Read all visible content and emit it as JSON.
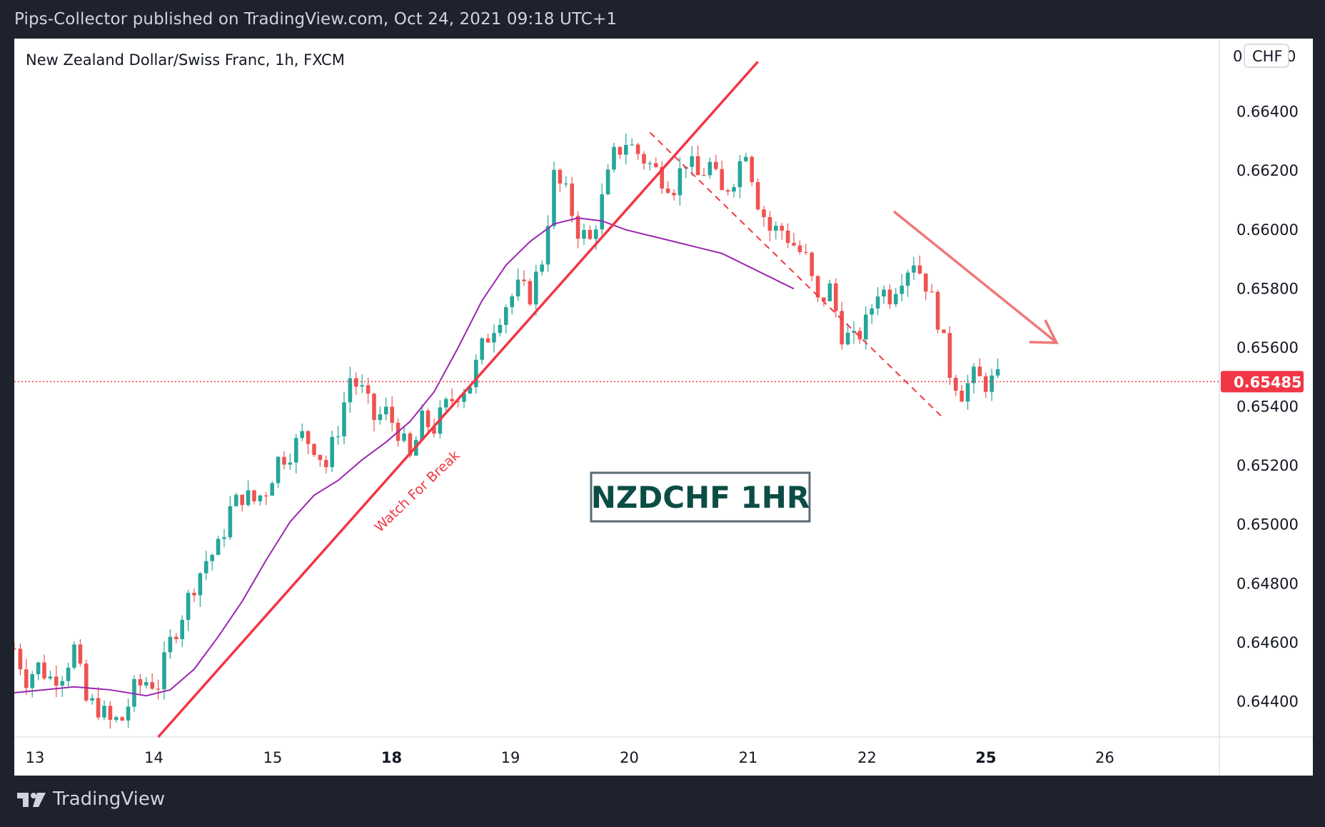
{
  "header": {
    "publisher_line": "Pips-Collector published on TradingView.com, Oct 24, 2021 09:18 UTC+1"
  },
  "footer": {
    "brand": "TradingView",
    "logo_icon": "tradingview-logo-icon"
  },
  "colors": {
    "up_candle": "#26a69a",
    "down_candle": "#ef5350",
    "ma_line": "#9c27b0",
    "trendline": "#f23645",
    "annotation_text": "#0b4d45",
    "price_tag": "#f23645"
  },
  "chart_data": {
    "type": "candlestick",
    "title": "New Zealand Dollar/Swiss Franc, 1h, FXCM",
    "currency_label": "CHF",
    "y_axis_top_label": "0",
    "y_ticks": [
      0.664,
      0.662,
      0.66,
      0.658,
      0.656,
      0.654,
      0.652,
      0.65,
      0.648,
      0.646,
      0.644
    ],
    "y_tick_labels": [
      "0.66400",
      "0.66200",
      "0.66000",
      "0.65800",
      "0.65600",
      "0.65400",
      "0.65200",
      "0.65000",
      "0.64800",
      "0.64600",
      "0.64400"
    ],
    "ylim": [
      0.6428,
      0.666
    ],
    "x_tick_labels": [
      {
        "label": "13",
        "bold": false
      },
      {
        "label": "14",
        "bold": false
      },
      {
        "label": "15",
        "bold": false
      },
      {
        "label": "18",
        "bold": true
      },
      {
        "label": "19",
        "bold": false
      },
      {
        "label": "20",
        "bold": false
      },
      {
        "label": "21",
        "bold": false
      },
      {
        "label": "22",
        "bold": false
      },
      {
        "label": "25",
        "bold": true
      },
      {
        "label": "26",
        "bold": false
      }
    ],
    "current_price": 0.65485,
    "current_price_label": "0.65485",
    "close_path": [
      [
        0,
        0.6458
      ],
      [
        2,
        0.6448
      ],
      [
        4,
        0.6452
      ],
      [
        6,
        0.6448
      ],
      [
        8,
        0.645
      ],
      [
        10,
        0.6458
      ],
      [
        12,
        0.644
      ],
      [
        14,
        0.6438
      ],
      [
        16,
        0.6433
      ],
      [
        18,
        0.6434
      ],
      [
        20,
        0.6444
      ],
      [
        22,
        0.6447
      ],
      [
        24,
        0.6446
      ],
      [
        26,
        0.646
      ],
      [
        28,
        0.647
      ],
      [
        30,
        0.648
      ],
      [
        32,
        0.6488
      ],
      [
        34,
        0.6492
      ],
      [
        36,
        0.6505
      ],
      [
        38,
        0.651
      ],
      [
        40,
        0.6508
      ],
      [
        42,
        0.6512
      ],
      [
        44,
        0.6522
      ],
      [
        46,
        0.6525
      ],
      [
        48,
        0.653
      ],
      [
        50,
        0.6527
      ],
      [
        52,
        0.652
      ],
      [
        54,
        0.6533
      ],
      [
        56,
        0.655
      ],
      [
        58,
        0.6545
      ],
      [
        60,
        0.6536
      ],
      [
        62,
        0.6538
      ],
      [
        64,
        0.6532
      ],
      [
        66,
        0.6522
      ],
      [
        68,
        0.6535
      ],
      [
        70,
        0.6533
      ],
      [
        72,
        0.654
      ],
      [
        74,
        0.6545
      ],
      [
        76,
        0.6548
      ],
      [
        78,
        0.656
      ],
      [
        80,
        0.6568
      ],
      [
        82,
        0.6575
      ],
      [
        84,
        0.658
      ],
      [
        86,
        0.6578
      ],
      [
        88,
        0.659
      ],
      [
        90,
        0.6618
      ],
      [
        92,
        0.6612
      ],
      [
        94,
        0.66
      ],
      [
        96,
        0.6596
      ],
      [
        98,
        0.661
      ],
      [
        100,
        0.6625
      ],
      [
        102,
        0.663
      ],
      [
        104,
        0.6626
      ],
      [
        106,
        0.6622
      ],
      [
        108,
        0.6618
      ],
      [
        110,
        0.6615
      ],
      [
        112,
        0.6624
      ],
      [
        114,
        0.6618
      ],
      [
        116,
        0.6622
      ],
      [
        118,
        0.6612
      ],
      [
        120,
        0.6618
      ],
      [
        122,
        0.6628
      ],
      [
        124,
        0.661
      ],
      [
        126,
        0.66
      ],
      [
        128,
        0.66
      ],
      [
        130,
        0.6595
      ],
      [
        132,
        0.659
      ],
      [
        134,
        0.6575
      ],
      [
        136,
        0.658
      ],
      [
        138,
        0.6565
      ],
      [
        140,
        0.6562
      ],
      [
        142,
        0.6568
      ],
      [
        144,
        0.658
      ],
      [
        146,
        0.6578
      ],
      [
        148,
        0.6585
      ],
      [
        150,
        0.659
      ],
      [
        152,
        0.6582
      ],
      [
        154,
        0.657
      ],
      [
        156,
        0.6552
      ],
      [
        158,
        0.6545
      ],
      [
        160,
        0.655
      ],
      [
        162,
        0.6548
      ],
      [
        164,
        0.6549
      ]
    ],
    "moving_average": [
      [
        0,
        0.6443
      ],
      [
        10,
        0.6445
      ],
      [
        16,
        0.6444
      ],
      [
        22,
        0.6442
      ],
      [
        26,
        0.6444
      ],
      [
        30,
        0.6451
      ],
      [
        34,
        0.6462
      ],
      [
        38,
        0.6474
      ],
      [
        42,
        0.6488
      ],
      [
        46,
        0.6501
      ],
      [
        50,
        0.651
      ],
      [
        54,
        0.6515
      ],
      [
        58,
        0.6522
      ],
      [
        62,
        0.6528
      ],
      [
        66,
        0.6535
      ],
      [
        70,
        0.6545
      ],
      [
        74,
        0.656
      ],
      [
        78,
        0.6576
      ],
      [
        82,
        0.6588
      ],
      [
        86,
        0.6596
      ],
      [
        90,
        0.6602
      ],
      [
        94,
        0.6604
      ],
      [
        98,
        0.6603
      ],
      [
        102,
        0.66
      ],
      [
        106,
        0.6598
      ],
      [
        110,
        0.6596
      ],
      [
        114,
        0.6594
      ],
      [
        118,
        0.6592
      ],
      [
        122,
        0.6588
      ],
      [
        126,
        0.6584
      ],
      [
        130,
        0.658
      ]
    ],
    "annotations": {
      "trendline_label": "Watch For Break",
      "box_label": "NZDCHF  1HR"
    }
  }
}
